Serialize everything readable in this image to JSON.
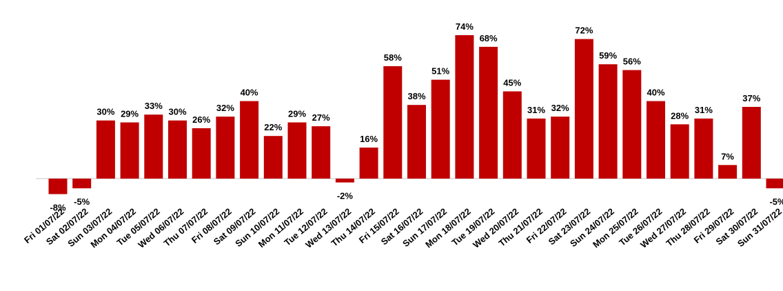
{
  "chart_data": {
    "type": "bar",
    "title": "",
    "xlabel": "",
    "ylabel": "",
    "bar_color": "#C00000",
    "axis_color": "#d9d9d9",
    "value_suffix": "%",
    "ylim": [
      -15,
      80
    ],
    "grid": false,
    "legend": "none",
    "categories": [
      "Fri 01/07/22",
      "Sat 02/07/22",
      "Sun 03/07/22",
      "Mon 04/07/22",
      "Tue 05/07/22",
      "Wed 06/07/22",
      "Thu 07/07/22",
      "Fri 08/07/22",
      "Sat 09/07/22",
      "Sun 10/07/22",
      "Mon 11/07/22",
      "Tue 12/07/22",
      "Wed 13/07/22",
      "Thu 14/07/22",
      "Fri 15/07/22",
      "Sat 16/07/22",
      "Sun 17/07/22",
      "Mon 18/07/22",
      "Tue 19/07/22",
      "Wed 20/07/22",
      "Thu 21/07/22",
      "Fri 22/07/22",
      "Sat 23/07/22",
      "Sun 24/07/22",
      "Mon 25/07/22",
      "Tue 26/07/22",
      "Wed 27/07/22",
      "Thu 28/07/22",
      "Fri 29/07/22",
      "Sat 30/07/22",
      "Sun 31/07/22"
    ],
    "values": [
      -8,
      -5,
      30,
      29,
      33,
      30,
      26,
      32,
      40,
      22,
      29,
      27,
      -2,
      16,
      58,
      38,
      51,
      74,
      68,
      45,
      31,
      32,
      72,
      59,
      56,
      40,
      28,
      31,
      7,
      37,
      -5
    ]
  }
}
